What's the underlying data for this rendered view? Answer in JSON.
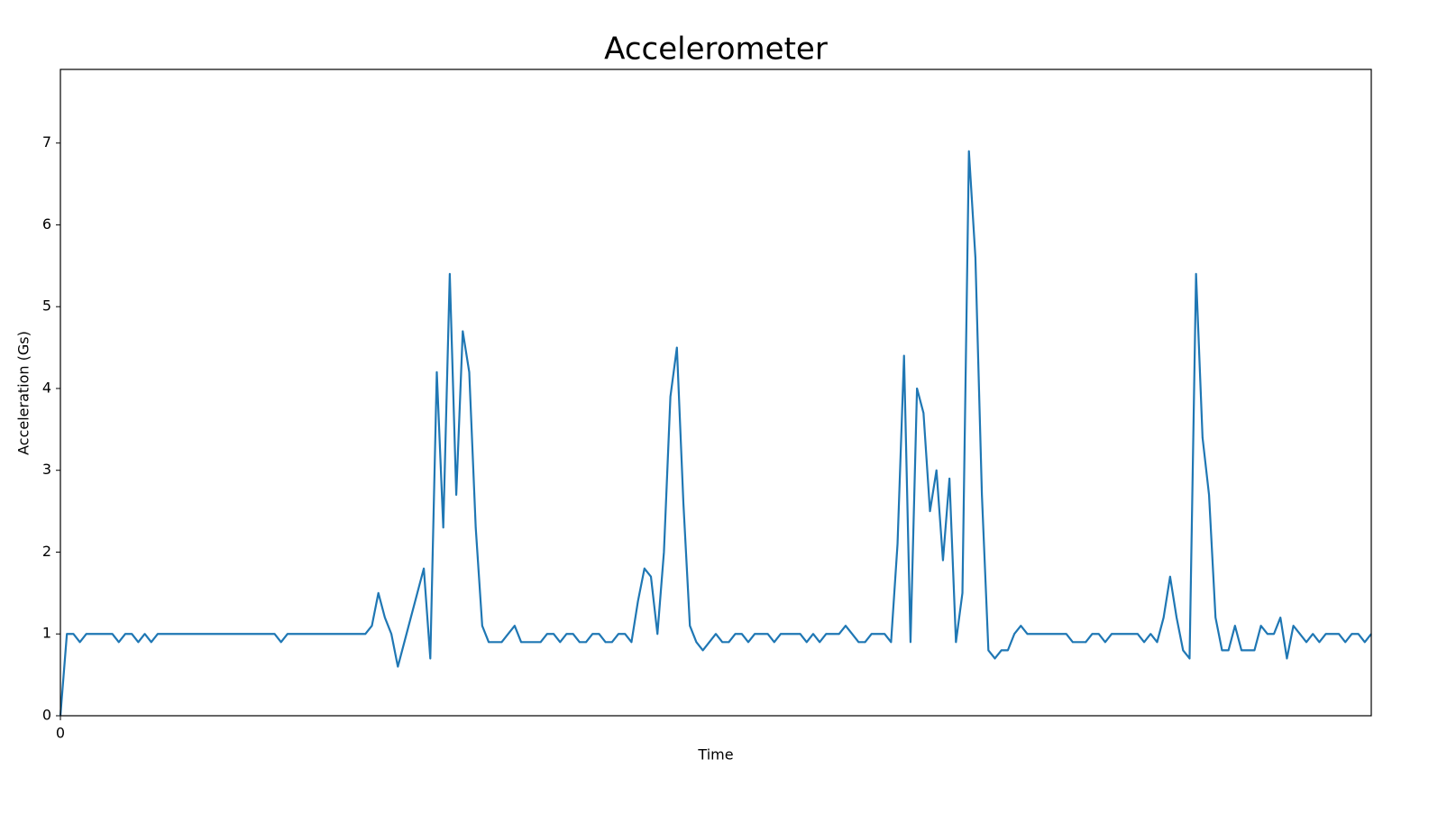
{
  "chart_data": {
    "type": "line",
    "title": "Accelerometer",
    "x_label": "Time",
    "y_label": "Acceleration (Gs)",
    "x": [
      0,
      1,
      2,
      3,
      4,
      5,
      6,
      7,
      8,
      9,
      10,
      11,
      12,
      13,
      14,
      15,
      16,
      17,
      18,
      19,
      20,
      21,
      22,
      23,
      24,
      25,
      26,
      27,
      28,
      29,
      30,
      31,
      32,
      33,
      34,
      35,
      36,
      37,
      38,
      39,
      40,
      41,
      42,
      43,
      44,
      45,
      46,
      47,
      48,
      49,
      50,
      51,
      52,
      53,
      54,
      55,
      56,
      57,
      58,
      59,
      60,
      61,
      62,
      63,
      64,
      65,
      66,
      67,
      68,
      69,
      70,
      71,
      72,
      73,
      74,
      75,
      76,
      77,
      78,
      79,
      80,
      81,
      82,
      83,
      84,
      85,
      86,
      87,
      88,
      89,
      90,
      91,
      92,
      93,
      94,
      95,
      96,
      97,
      98,
      99,
      100,
      101,
      102,
      103,
      104,
      105,
      106,
      107,
      108,
      109,
      110,
      111,
      112,
      113,
      114,
      115,
      116,
      117,
      118,
      119,
      120,
      121,
      122,
      123,
      124,
      125,
      126,
      127,
      128,
      129,
      130,
      131,
      132,
      133,
      134,
      135,
      136,
      137,
      138,
      139,
      140,
      141,
      142,
      143,
      144,
      145,
      146,
      147,
      148,
      149,
      150,
      151,
      152,
      153,
      154,
      155,
      156,
      157,
      158,
      159,
      160,
      161,
      162,
      163,
      164,
      165,
      166,
      167,
      168,
      169,
      170,
      171,
      172,
      173,
      174,
      175,
      176,
      177,
      178,
      179,
      180,
      181,
      182,
      183,
      184,
      185,
      186,
      187,
      188,
      189,
      190,
      191,
      192,
      193,
      194,
      195,
      196,
      197,
      198,
      199,
      200,
      201,
      202
    ],
    "series": [
      {
        "color": "#1f77b4",
        "values": [
          0,
          1,
          1,
          0.9,
          1,
          1,
          1,
          1,
          1,
          0.9,
          1,
          1,
          0.9,
          1,
          0.9,
          1,
          1,
          1,
          1,
          1,
          1,
          1,
          1,
          1,
          1,
          1,
          1,
          1,
          1,
          1,
          1,
          1,
          1,
          1,
          0.9,
          1,
          1,
          1,
          1,
          1,
          1,
          1,
          1,
          1,
          1,
          1,
          1,
          1,
          1.1,
          1.5,
          1.2,
          1,
          0.6,
          0.9,
          1.2,
          1.5,
          1.8,
          0.7,
          4.2,
          2.3,
          5.4,
          2.7,
          4.7,
          4.2,
          2.3,
          1.1,
          0.9,
          0.9,
          0.9,
          1,
          1.1,
          0.9,
          0.9,
          0.9,
          0.9,
          1,
          1,
          0.9,
          1,
          1,
          0.9,
          0.9,
          1,
          1,
          0.9,
          0.9,
          1,
          1,
          0.9,
          1.4,
          1.8,
          1.7,
          1,
          2,
          3.9,
          4.5,
          2.6,
          1.1,
          0.9,
          0.8,
          0.9,
          1,
          0.9,
          0.9,
          1,
          1,
          0.9,
          1,
          1,
          1,
          0.9,
          1,
          1,
          1,
          1,
          0.9,
          1,
          0.9,
          1,
          1,
          1,
          1.1,
          1,
          0.9,
          0.9,
          1,
          1,
          1,
          0.9,
          2.1,
          4.4,
          0.9,
          4,
          3.7,
          2.5,
          3,
          1.9,
          2.9,
          0.9,
          1.5,
          6.9,
          5.6,
          2.7,
          0.8,
          0.7,
          0.8,
          0.8,
          1,
          1.1,
          1,
          1,
          1,
          1,
          1,
          1,
          1,
          0.9,
          0.9,
          0.9,
          1,
          1,
          0.9,
          1,
          1,
          1,
          1,
          1,
          0.9,
          1,
          0.9,
          1.2,
          1.7,
          1.2,
          0.8,
          0.7,
          5.4,
          3.4,
          2.7,
          1.2,
          0.8,
          0.8,
          1.1,
          0.8,
          0.8,
          0.8,
          1.1,
          1,
          1,
          1.2,
          0.7,
          1.1,
          1,
          0.9,
          1,
          0.9,
          1,
          1,
          1,
          0.9,
          1,
          1,
          0.9,
          1
        ]
      }
    ],
    "xlim": [
      0,
      202
    ],
    "xticks": [
      0
    ],
    "ylim": [
      0,
      7.9
    ],
    "yticks": [
      0,
      1,
      2,
      3,
      4,
      5,
      6,
      7
    ]
  }
}
